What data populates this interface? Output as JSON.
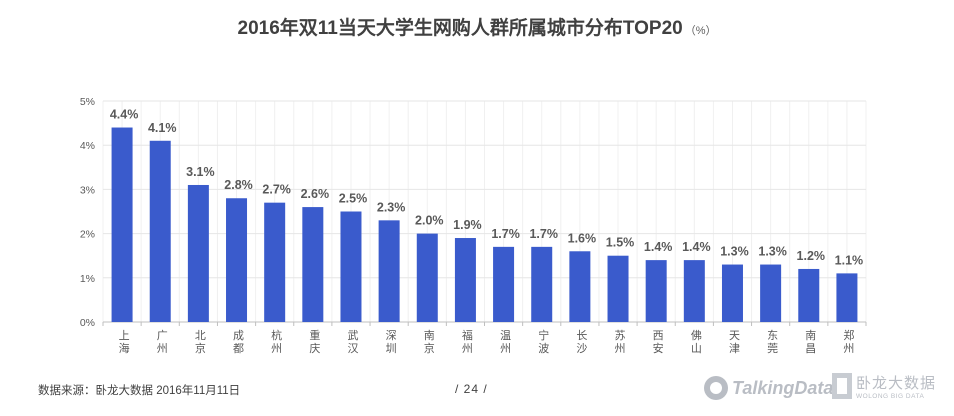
{
  "title": {
    "main": "2016年双11当天大学生网购人群所属城市分布TOP20",
    "unit": "（%）"
  },
  "chart_data": {
    "type": "bar",
    "categories": [
      "上海",
      "广州",
      "北京",
      "成都",
      "杭州",
      "重庆",
      "武汉",
      "深圳",
      "南京",
      "福州",
      "温州",
      "宁波",
      "长沙",
      "苏州",
      "西安",
      "佛山",
      "天津",
      "东莞",
      "南昌",
      "郑州"
    ],
    "values": [
      4.4,
      4.1,
      3.1,
      2.8,
      2.7,
      2.6,
      2.5,
      2.3,
      2.0,
      1.9,
      1.7,
      1.7,
      1.6,
      1.5,
      1.4,
      1.4,
      1.3,
      1.3,
      1.2,
      1.1
    ],
    "value_labels": [
      "4.4%",
      "4.1%",
      "3.1%",
      "2.8%",
      "2.7%",
      "2.6%",
      "2.5%",
      "2.3%",
      "2.0%",
      "1.9%",
      "1.7%",
      "1.7%",
      "1.6%",
      "1.5%",
      "1.4%",
      "1.4%",
      "1.3%",
      "1.3%",
      "1.2%",
      "1.1%"
    ],
    "yticks": [
      "0%",
      "1%",
      "2%",
      "3%",
      "4%",
      "5%"
    ],
    "ylim": [
      0,
      5
    ],
    "grid": true,
    "bar_color": "#3a5bcc"
  },
  "footer": {
    "source": "数据来源：卧龙大数据  2016年11月11日",
    "page": "/  24  /"
  },
  "logos": {
    "talkingdata": "TalkingData",
    "wolong_cn": "卧龙大数据",
    "wolong_en": "WOLONG BIG DATA"
  }
}
